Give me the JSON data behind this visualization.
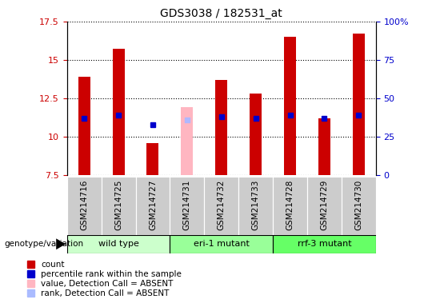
{
  "title": "GDS3038 / 182531_at",
  "samples": [
    "GSM214716",
    "GSM214725",
    "GSM214727",
    "GSM214731",
    "GSM214732",
    "GSM214733",
    "GSM214728",
    "GSM214729",
    "GSM214730"
  ],
  "count_values": [
    13.9,
    15.7,
    9.6,
    null,
    13.7,
    12.8,
    16.5,
    11.2,
    16.7
  ],
  "absent_value_values": [
    null,
    null,
    null,
    11.9,
    null,
    null,
    null,
    null,
    null
  ],
  "percentile_values": [
    11.2,
    11.4,
    10.8,
    null,
    11.3,
    11.2,
    11.4,
    11.2,
    11.4
  ],
  "absent_rank_values": [
    null,
    null,
    null,
    11.1,
    null,
    null,
    null,
    null,
    null
  ],
  "ylim": [
    7.5,
    17.5
  ],
  "yticks": [
    7.5,
    10.0,
    12.5,
    15.0,
    17.5
  ],
  "ytick_labels": [
    "7.5",
    "10",
    "12.5",
    "15",
    "17.5"
  ],
  "right_yticks": [
    0,
    25,
    50,
    75,
    100
  ],
  "right_ytick_labels": [
    "0",
    "25",
    "50",
    "75",
    "100%"
  ],
  "genotype_groups": [
    {
      "label": "wild type",
      "start": 0,
      "end": 3,
      "color": "#ccffcc"
    },
    {
      "label": "eri-1 mutant",
      "start": 3,
      "end": 6,
      "color": "#99ff99"
    },
    {
      "label": "rrf-3 mutant",
      "start": 6,
      "end": 9,
      "color": "#66ff66"
    }
  ],
  "bar_color_count": "#cc0000",
  "bar_color_absent_value": "#ffb6c1",
  "bar_color_percentile": "#0000cc",
  "bar_color_absent_rank": "#b0b8ff",
  "bar_width": 0.35,
  "ylabel_left_color": "#cc0000",
  "ylabel_right_color": "#0000cc",
  "legend_items": [
    {
      "label": "count",
      "color": "#cc0000"
    },
    {
      "label": "percentile rank within the sample",
      "color": "#0000cc"
    },
    {
      "label": "value, Detection Call = ABSENT",
      "color": "#ffb6c1"
    },
    {
      "label": "rank, Detection Call = ABSENT",
      "color": "#aabbff"
    }
  ],
  "plot_bg_color": "#ffffff",
  "gray_box_color": "#cccccc",
  "genotype_label": "genotype/variation"
}
